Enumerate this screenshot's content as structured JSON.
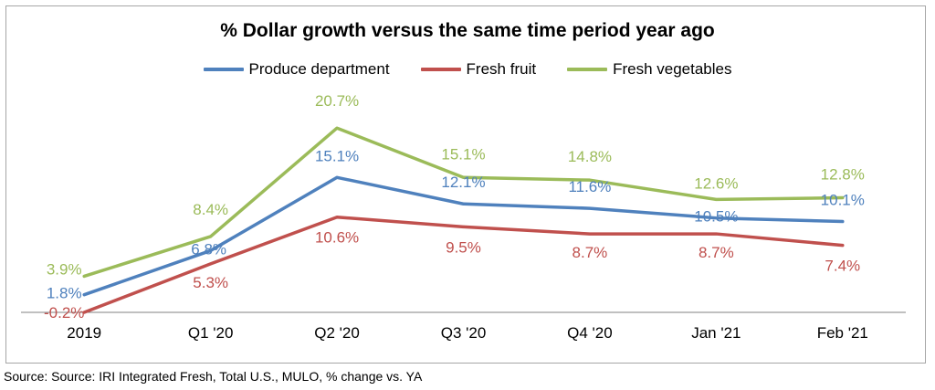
{
  "chart_data": {
    "type": "line",
    "title": "% Dollar growth versus the same time period year ago",
    "categories": [
      "2019",
      "Q1 '20",
      "Q2 '20",
      "Q3 '20",
      "Q4 '20",
      "Jan '21",
      "Feb '21"
    ],
    "series": [
      {
        "name": "Produce department",
        "color": "#4f81bd",
        "values": [
          1.8,
          6.8,
          15.1,
          12.1,
          11.6,
          10.5,
          10.1
        ],
        "labels": [
          "1.8%",
          "6.8%",
          "15.1%",
          "12.1%",
          "11.6%",
          "10.5%",
          "10.1%"
        ]
      },
      {
        "name": "Fresh fruit",
        "color": "#c0504d",
        "values": [
          -0.2,
          5.3,
          10.6,
          9.5,
          8.7,
          8.7,
          7.4
        ],
        "labels": [
          "-0.2%",
          "5.3%",
          "10.6%",
          "9.5%",
          "8.7%",
          "8.7%",
          "7.4%"
        ]
      },
      {
        "name": "Fresh vegetables",
        "color": "#9bbb59",
        "values": [
          3.9,
          8.4,
          20.7,
          15.1,
          14.8,
          12.6,
          12.8
        ],
        "labels": [
          "3.9%",
          "8.4%",
          "20.7%",
          "15.1%",
          "14.8%",
          "12.6%",
          "12.8%"
        ]
      }
    ],
    "ylim": [
      -0.2,
      23
    ],
    "grid": false,
    "legend_position": "top"
  },
  "source": "Source: Source: IRI Integrated Fresh, Total U.S., MULO, % change vs. YA"
}
